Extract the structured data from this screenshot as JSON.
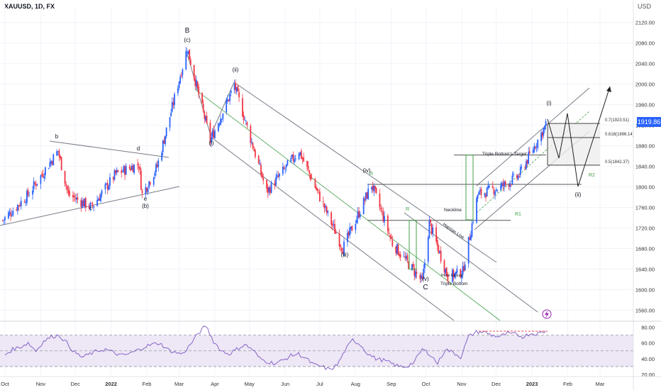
{
  "header": {
    "symbol": "XAUUSD, 1D, FX",
    "currency": "USD",
    "last_price": "1919.86"
  },
  "colors": {
    "bull": "#2962ff",
    "bear": "#f23645",
    "channel": "#787b86",
    "green": "#43a047",
    "rsi_line": "#7e57c2",
    "rsi_band": "#ede7f6",
    "projection_fill": "#eeeeee",
    "badge": "#2962ff",
    "bolt": "#9c27b0"
  },
  "chart_data": [
    {
      "type": "candlestick",
      "title": "XAUUSD, 1D, FX",
      "x_axis": {
        "labels": [
          "Oct",
          "Nov",
          "Dec",
          "2022",
          "Feb",
          "Mar",
          "Apr",
          "May",
          "Jun",
          "Jul",
          "Aug",
          "Sep",
          "Oct",
          "Nov",
          "Dec",
          "2023",
          "Feb",
          "Mar"
        ]
      },
      "y_axis": {
        "unit": "USD",
        "range": [
          1540,
          2150
        ],
        "ticks": [
          1560,
          1600,
          1640,
          1680,
          1720,
          1760,
          1800,
          1840,
          1880,
          1920,
          1960,
          2000,
          2040,
          2080,
          2120
        ]
      },
      "price_path_approx": [
        {
          "date": "2021-09-29",
          "close": 1735
        },
        {
          "date": "2021-10-20",
          "close": 1782
        },
        {
          "date": "2021-11-16",
          "close": 1870
        },
        {
          "date": "2021-11-25",
          "close": 1785
        },
        {
          "date": "2021-12-15",
          "close": 1760
        },
        {
          "date": "2022-01-05",
          "close": 1825
        },
        {
          "date": "2022-01-25",
          "close": 1845
        },
        {
          "date": "2022-01-28",
          "close": 1785
        },
        {
          "date": "2022-02-10",
          "close": 1840
        },
        {
          "date": "2022-03-08",
          "close": 2070
        },
        {
          "date": "2022-03-28",
          "close": 1890
        },
        {
          "date": "2022-04-18",
          "close": 1998
        },
        {
          "date": "2022-05-16",
          "close": 1790
        },
        {
          "date": "2022-06-13",
          "close": 1870
        },
        {
          "date": "2022-07-21",
          "close": 1680
        },
        {
          "date": "2022-08-15",
          "close": 1805
        },
        {
          "date": "2022-09-02",
          "close": 1690
        },
        {
          "date": "2022-09-28",
          "close": 1615
        },
        {
          "date": "2022-10-04",
          "close": 1730
        },
        {
          "date": "2022-10-20",
          "close": 1625
        },
        {
          "date": "2022-11-02",
          "close": 1635
        },
        {
          "date": "2022-11-15",
          "close": 1785
        },
        {
          "date": "2022-12-05",
          "close": 1800
        },
        {
          "date": "2022-12-20",
          "close": 1820
        },
        {
          "date": "2023-01-13",
          "close": 1920
        }
      ],
      "levels": {
        "fib_0.7": {
          "label": "0.7(1923.51)",
          "value": 1923.51
        },
        "fib_0.618": {
          "label": "0.618(1896.14)",
          "value": 1896.14
        },
        "fib_0.5": {
          "label": "0.5(1842.37)",
          "value": 1842.37
        },
        "triple_bottom_target": {
          "label": "Triple Bottom's Target",
          "value": 1862
        },
        "r2": {
          "label": "R2",
          "value": 1805
        },
        "neckline": {
          "label": "Neckline",
          "value": 1735
        },
        "r1": {
          "label": "R1",
          "value": 1735
        }
      },
      "wave_labels": [
        {
          "label": "B",
          "date": "2022-03-08"
        },
        {
          "label": "(c)",
          "date": "2022-03-08"
        },
        {
          "label": "b",
          "date": "2021-11-16"
        },
        {
          "label": "c",
          "date": "2021-12-15"
        },
        {
          "label": "d",
          "date": "2022-01-25"
        },
        {
          "label": "e",
          "date": "2022-01-28"
        },
        {
          "label": "(b)",
          "date": "2022-01-28"
        },
        {
          "label": "(i)",
          "date": "2022-03-28"
        },
        {
          "label": "(ii)",
          "date": "2022-04-18"
        },
        {
          "label": "(iii)",
          "date": "2022-07-21"
        },
        {
          "label": "(iv)",
          "date": "2022-08-15"
        },
        {
          "label": "(v)",
          "date": "2022-09-28"
        },
        {
          "label": "C",
          "date": "2022-09-28"
        },
        {
          "label": "(i)",
          "date": "2023-01-13"
        },
        {
          "label": "(ii)",
          "date": "2023-02-20"
        }
      ],
      "annotations": [
        "Neckline",
        "Hapsian Line",
        "Price Failure",
        "Triple Bottom",
        "Triple Bottom's Target",
        "R",
        "R",
        "R1",
        "R2"
      ]
    },
    {
      "type": "line",
      "title": "",
      "y_axis": {
        "range": [
          20,
          85
        ],
        "ticks": [
          20.0,
          40.0,
          60.0,
          80.0
        ],
        "guides": [
          70,
          50,
          30
        ]
      },
      "series": [
        {
          "values": [
            45,
            52,
            55,
            60,
            50,
            62,
            68,
            70,
            60,
            48,
            42,
            46,
            50,
            52,
            48,
            44,
            46,
            50,
            55,
            58,
            60,
            52,
            48,
            46,
            58,
            72,
            82,
            62,
            50,
            46,
            52,
            58,
            52,
            40,
            36,
            34,
            38,
            44,
            46,
            40,
            32,
            30,
            26,
            32,
            50,
            64,
            58,
            46,
            40,
            38,
            34,
            30,
            30,
            36,
            52,
            46,
            34,
            52,
            48,
            42,
            68,
            74,
            74,
            70,
            68,
            72,
            71,
            68,
            72,
            72,
            75
          ]
        }
      ]
    }
  ]
}
